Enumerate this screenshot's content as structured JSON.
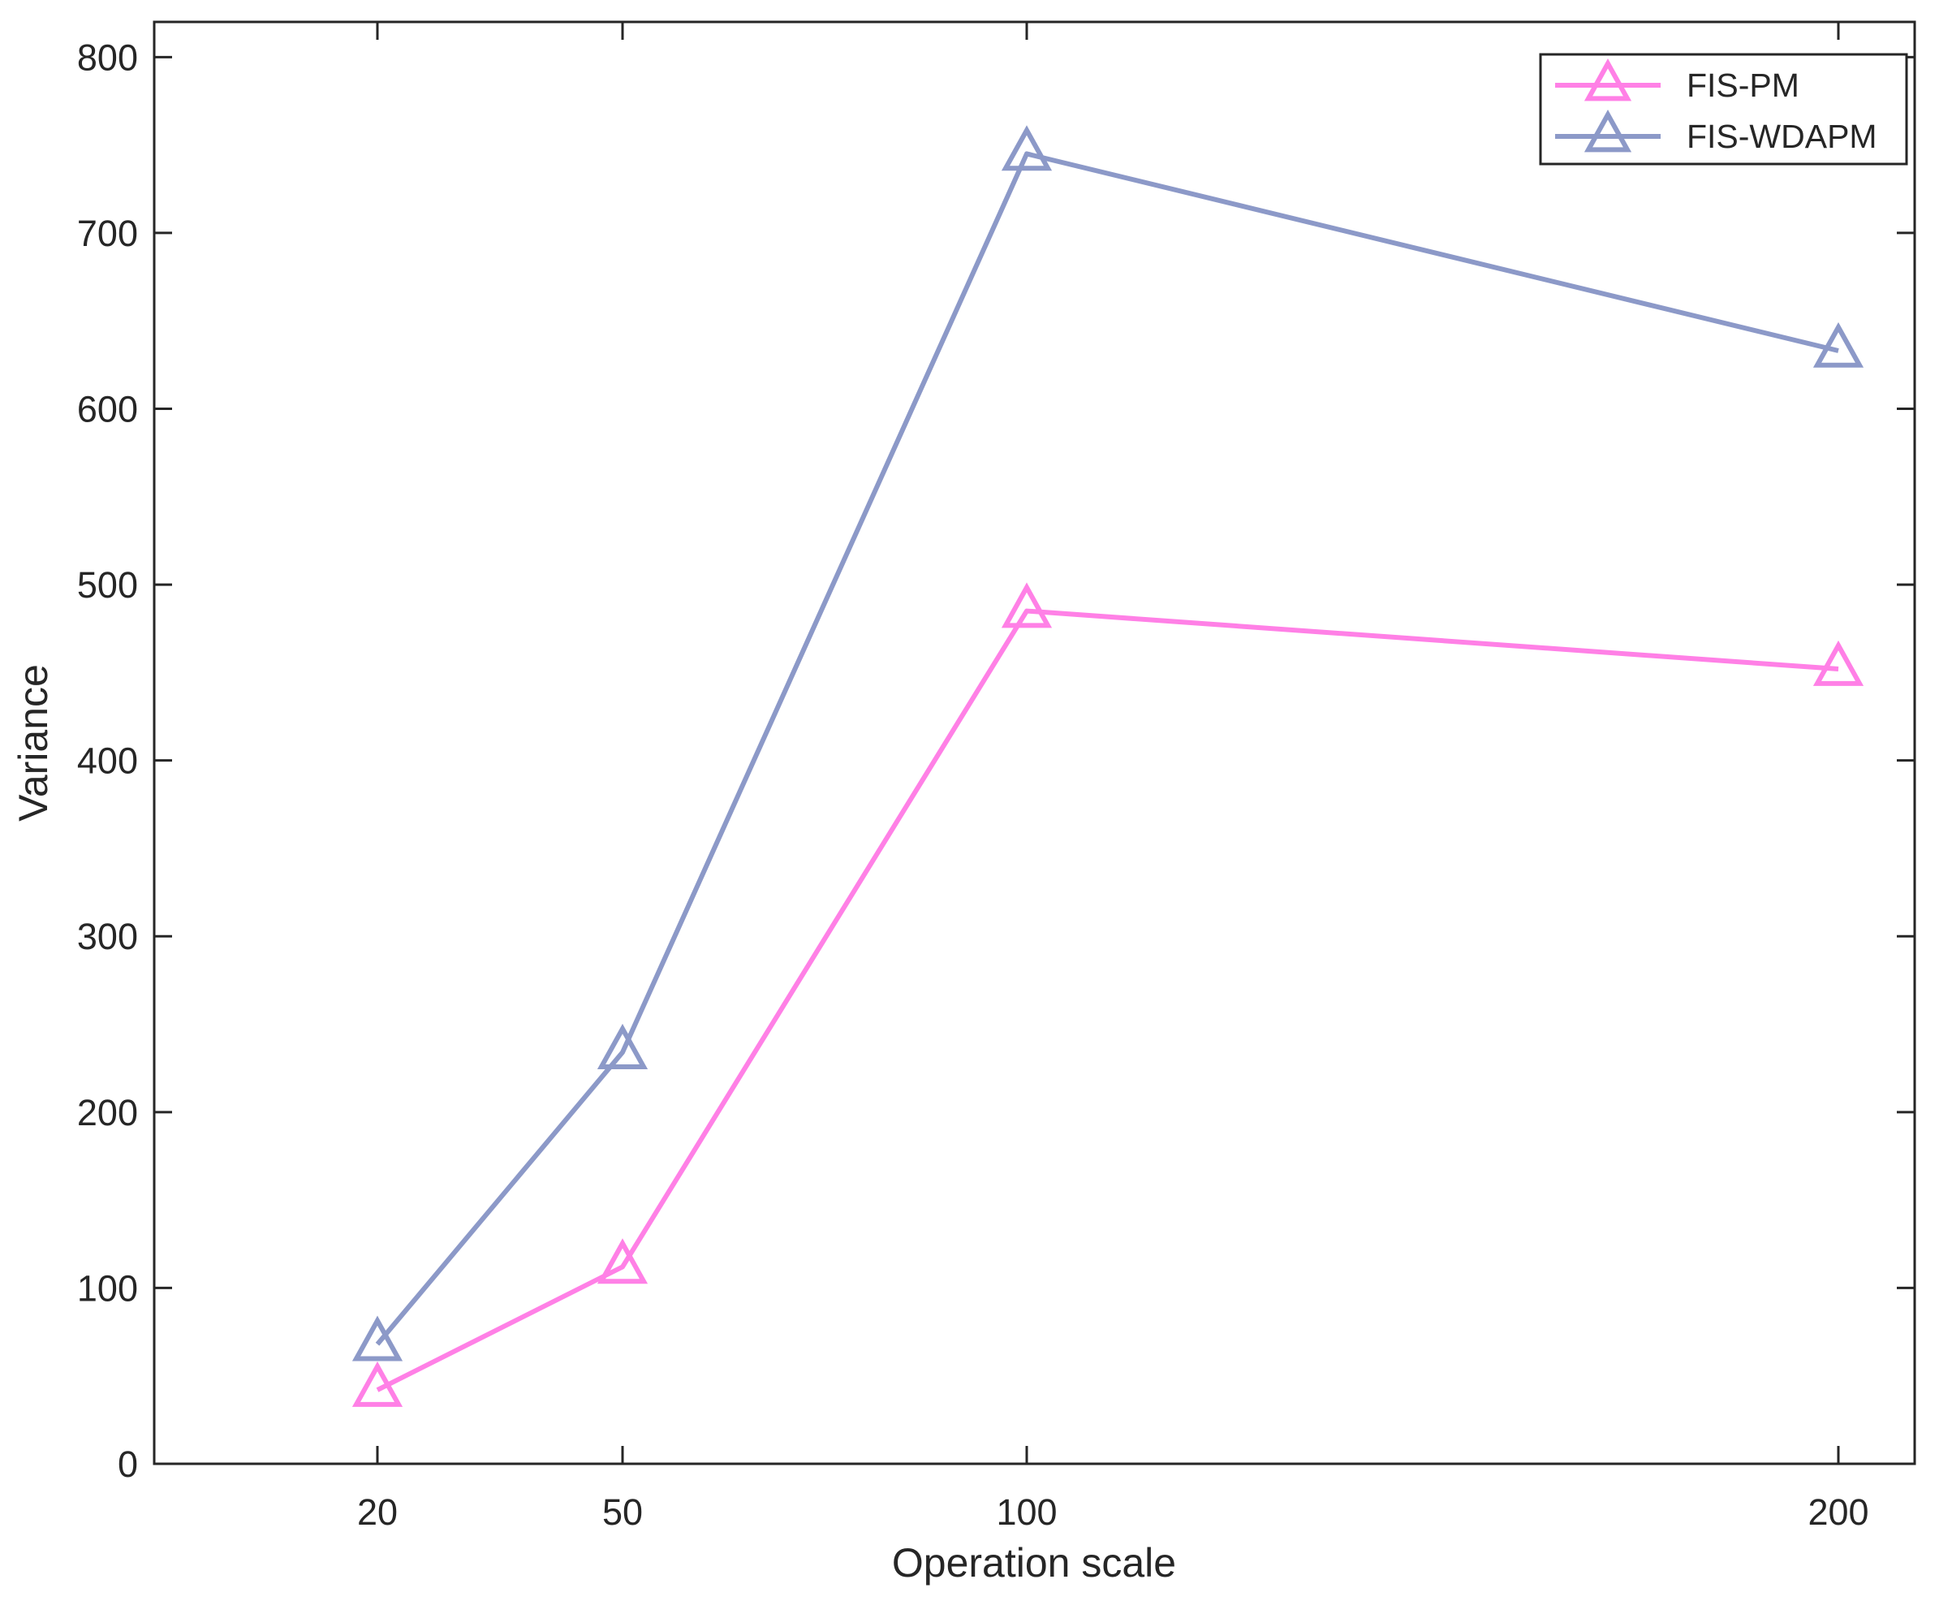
{
  "chart_data": {
    "type": "line",
    "xlabel": "Operation scale",
    "ylabel": "Variance",
    "categories": [
      "20",
      "50",
      "100",
      "200"
    ],
    "x": [
      20,
      50,
      100,
      200
    ],
    "ylim": [
      0,
      820
    ],
    "yticks": [
      0,
      100,
      200,
      300,
      400,
      500,
      600,
      700,
      800
    ],
    "xticks": [
      "20",
      "50",
      "100",
      "200"
    ],
    "grid": false,
    "legend_position": "top-right",
    "marker": "triangle-open",
    "series": [
      {
        "name": "FIS-PM",
        "color": "#ff80e6",
        "values": [
          42,
          112,
          485,
          452
        ]
      },
      {
        "name": "FIS-WDAPM",
        "color": "#8c99c8",
        "values": [
          68,
          234,
          745,
          633
        ]
      }
    ]
  }
}
